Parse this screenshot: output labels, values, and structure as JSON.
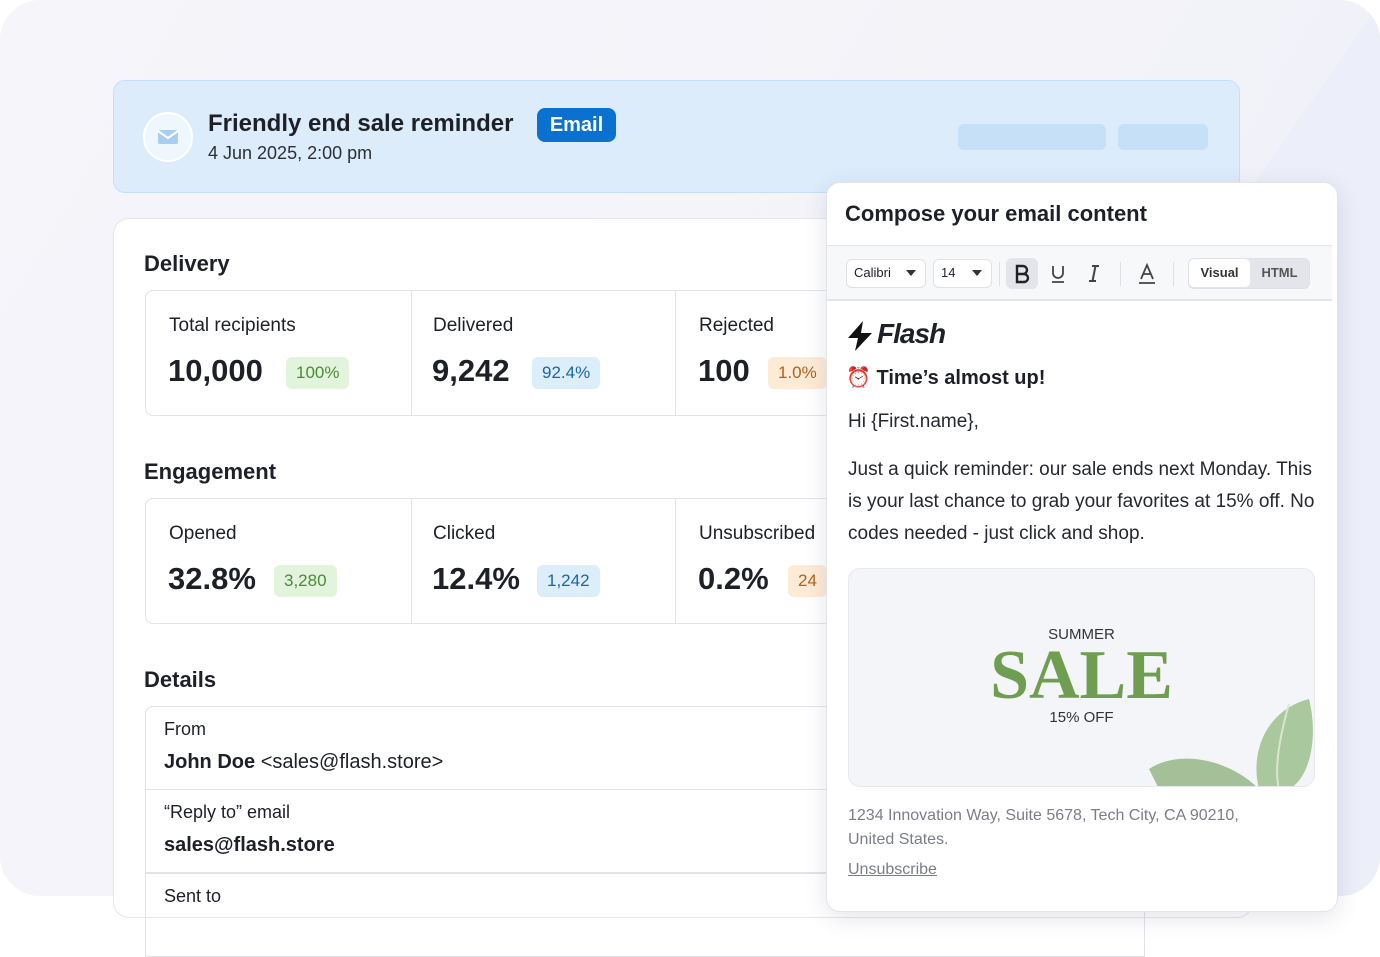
{
  "header": {
    "title": "Friendly end sale reminder",
    "badge": "Email",
    "date": "4 Jun 2025, 2:00 pm"
  },
  "delivery": {
    "title": "Delivery",
    "cards": [
      {
        "label": "Total recipients",
        "value": "10,000",
        "badge": "100%"
      },
      {
        "label": "Delivered",
        "value": "9,242",
        "badge": "92.4%"
      },
      {
        "label": "Rejected",
        "value": "100",
        "badge": "1.0%"
      }
    ]
  },
  "engagement": {
    "title": "Engagement",
    "cards": [
      {
        "label": "Opened",
        "value": "32.8%",
        "badge": "3,280"
      },
      {
        "label": "Clicked",
        "value": "12.4%",
        "badge": "1,242"
      },
      {
        "label": "Unsubscribed",
        "value": "0.2%",
        "badge": "24"
      }
    ]
  },
  "details": {
    "title": "Details",
    "rows": [
      {
        "label": "From",
        "name": "John Doe",
        "value": "<sales@flash.store>"
      },
      {
        "label": "“Reply to” email",
        "value": "sales@flash.store"
      },
      {
        "label": "Sent to"
      }
    ]
  },
  "composer": {
    "title": "Compose your email content",
    "font": "Calibri",
    "size": "14",
    "tabs": [
      "Visual",
      "HTML"
    ],
    "brand": "Flash",
    "heading": "⏰ Time’s almost up!",
    "greeting": "Hi {First.name},",
    "body": "Just a quick reminder: our sale ends next Monday. This is your last chance to grab your favorites at 15% off. No codes needed - just click and shop.",
    "banner": {
      "top": "SUMMER",
      "main": "SALE",
      "bottom": "15% OFF"
    },
    "address": "1234 Innovation Way, Suite 5678, Tech City, CA 90210, United States.",
    "unsubscribe": "Unsubscribe"
  }
}
